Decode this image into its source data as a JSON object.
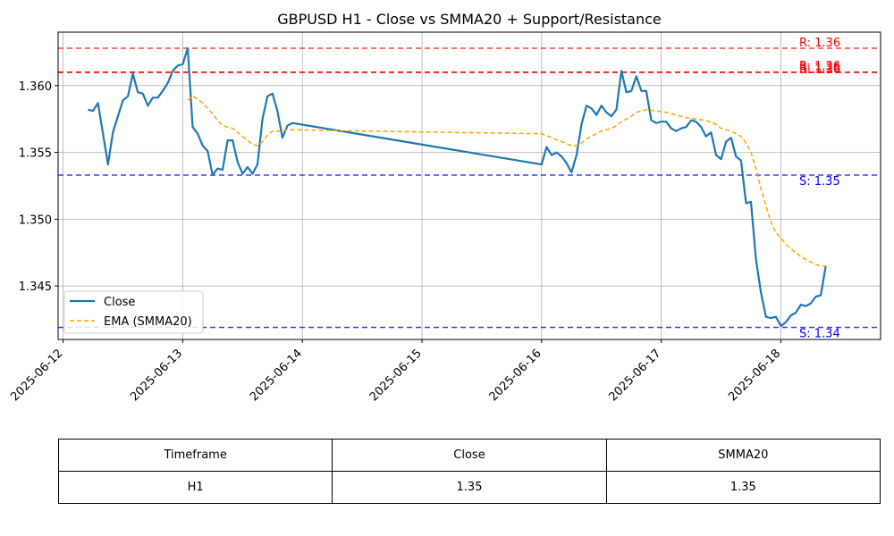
{
  "chart_data": {
    "type": "line",
    "title": "GBPUSD H1 - Close vs SMMA20 + Support/Resistance",
    "xlabel": "",
    "ylabel": "",
    "ylim": [
      1.341,
      1.364
    ],
    "xlim": [
      "2025-06-11T23:00",
      "2025-06-18T20:00"
    ],
    "xticks": [
      "2025-06-12",
      "2025-06-13",
      "2025-06-14",
      "2025-06-15",
      "2025-06-16",
      "2025-06-17",
      "2025-06-18"
    ],
    "yticks": [
      "1.345",
      "1.350",
      "1.355",
      "1.360"
    ],
    "grid": true,
    "legend_placement": "lower-left",
    "series": [
      {
        "name": "Close",
        "color": "#1f77b4",
        "style": "solid",
        "points": [
          [
            "2025-06-12T05:00",
            1.3582
          ],
          [
            "2025-06-12T06:00",
            1.3581
          ],
          [
            "2025-06-12T07:00",
            1.3587
          ],
          [
            "2025-06-12T08:00",
            1.3564
          ],
          [
            "2025-06-12T09:00",
            1.3541
          ],
          [
            "2025-06-12T10:00",
            1.3565
          ],
          [
            "2025-06-12T11:00",
            1.3577
          ],
          [
            "2025-06-12T12:00",
            1.3589
          ],
          [
            "2025-06-12T13:00",
            1.3592
          ],
          [
            "2025-06-12T14:00",
            1.3609
          ],
          [
            "2025-06-12T15:00",
            1.3595
          ],
          [
            "2025-06-12T16:00",
            1.3594
          ],
          [
            "2025-06-12T17:00",
            1.3585
          ],
          [
            "2025-06-12T18:00",
            1.3591
          ],
          [
            "2025-06-12T19:00",
            1.3591
          ],
          [
            "2025-06-12T20:00",
            1.3596
          ],
          [
            "2025-06-12T21:00",
            1.3602
          ],
          [
            "2025-06-12T22:00",
            1.3611
          ],
          [
            "2025-06-12T23:00",
            1.3615
          ],
          [
            "2025-06-13T00:00",
            1.3616
          ],
          [
            "2025-06-13T01:00",
            1.3628
          ],
          [
            "2025-06-13T02:00",
            1.3569
          ],
          [
            "2025-06-13T03:00",
            1.3564
          ],
          [
            "2025-06-13T04:00",
            1.3555
          ],
          [
            "2025-06-13T05:00",
            1.3551
          ],
          [
            "2025-06-13T06:00",
            1.3533
          ],
          [
            "2025-06-13T07:00",
            1.3538
          ],
          [
            "2025-06-13T08:00",
            1.3537
          ],
          [
            "2025-06-13T09:00",
            1.3559
          ],
          [
            "2025-06-13T10:00",
            1.3559
          ],
          [
            "2025-06-13T11:00",
            1.3543
          ],
          [
            "2025-06-13T12:00",
            1.3534
          ],
          [
            "2025-06-13T13:00",
            1.3539
          ],
          [
            "2025-06-13T14:00",
            1.3534
          ],
          [
            "2025-06-13T15:00",
            1.3541
          ],
          [
            "2025-06-13T16:00",
            1.3575
          ],
          [
            "2025-06-13T17:00",
            1.3592
          ],
          [
            "2025-06-13T18:00",
            1.3594
          ],
          [
            "2025-06-13T19:00",
            1.3581
          ],
          [
            "2025-06-13T20:00",
            1.3561
          ],
          [
            "2025-06-13T21:00",
            1.357
          ],
          [
            "2025-06-13T22:00",
            1.3572
          ],
          [
            "2025-06-16T00:00",
            1.3541
          ],
          [
            "2025-06-16T01:00",
            1.3554
          ],
          [
            "2025-06-16T02:00",
            1.3548
          ],
          [
            "2025-06-16T03:00",
            1.355
          ],
          [
            "2025-06-16T04:00",
            1.3547
          ],
          [
            "2025-06-16T05:00",
            1.3542
          ],
          [
            "2025-06-16T06:00",
            1.3535
          ],
          [
            "2025-06-16T07:00",
            1.3548
          ],
          [
            "2025-06-16T08:00",
            1.3571
          ],
          [
            "2025-06-16T09:00",
            1.3585
          ],
          [
            "2025-06-16T10:00",
            1.3583
          ],
          [
            "2025-06-16T11:00",
            1.3578
          ],
          [
            "2025-06-16T12:00",
            1.3585
          ],
          [
            "2025-06-16T13:00",
            1.358
          ],
          [
            "2025-06-16T14:00",
            1.3577
          ],
          [
            "2025-06-16T15:00",
            1.3582
          ],
          [
            "2025-06-16T16:00",
            1.3611
          ],
          [
            "2025-06-16T17:00",
            1.3595
          ],
          [
            "2025-06-16T18:00",
            1.3596
          ],
          [
            "2025-06-16T19:00",
            1.3607
          ],
          [
            "2025-06-16T20:00",
            1.3596
          ],
          [
            "2025-06-16T21:00",
            1.3596
          ],
          [
            "2025-06-16T22:00",
            1.3574
          ],
          [
            "2025-06-16T23:00",
            1.3572
          ],
          [
            "2025-06-17T00:00",
            1.3573
          ],
          [
            "2025-06-17T01:00",
            1.3573
          ],
          [
            "2025-06-17T02:00",
            1.3568
          ],
          [
            "2025-06-17T03:00",
            1.3566
          ],
          [
            "2025-06-17T04:00",
            1.3568
          ],
          [
            "2025-06-17T05:00",
            1.3569
          ],
          [
            "2025-06-17T06:00",
            1.3574
          ],
          [
            "2025-06-17T07:00",
            1.3573
          ],
          [
            "2025-06-17T08:00",
            1.3569
          ],
          [
            "2025-06-17T09:00",
            1.3562
          ],
          [
            "2025-06-17T10:00",
            1.3565
          ],
          [
            "2025-06-17T11:00",
            1.3548
          ],
          [
            "2025-06-17T12:00",
            1.3545
          ],
          [
            "2025-06-17T13:00",
            1.3558
          ],
          [
            "2025-06-17T14:00",
            1.3561
          ],
          [
            "2025-06-17T15:00",
            1.3547
          ],
          [
            "2025-06-17T16:00",
            1.3544
          ],
          [
            "2025-06-17T17:00",
            1.3512
          ],
          [
            "2025-06-17T18:00",
            1.3513
          ],
          [
            "2025-06-17T19:00",
            1.347
          ],
          [
            "2025-06-17T20:00",
            1.3445
          ],
          [
            "2025-06-17T21:00",
            1.3427
          ],
          [
            "2025-06-17T22:00",
            1.3426
          ],
          [
            "2025-06-17T23:00",
            1.3427
          ],
          [
            "2025-06-18T00:00",
            1.342
          ],
          [
            "2025-06-18T01:00",
            1.3423
          ],
          [
            "2025-06-18T02:00",
            1.3428
          ],
          [
            "2025-06-18T03:00",
            1.343
          ],
          [
            "2025-06-18T04:00",
            1.3436
          ],
          [
            "2025-06-18T05:00",
            1.3435
          ],
          [
            "2025-06-18T06:00",
            1.3437
          ],
          [
            "2025-06-18T07:00",
            1.3442
          ],
          [
            "2025-06-18T08:00",
            1.3443
          ],
          [
            "2025-06-18T09:00",
            1.3465
          ]
        ]
      },
      {
        "name": "EMA (SMMA20)",
        "color": "#ffa500",
        "style": "dashed",
        "points": [
          [
            "2025-06-13T01:00",
            1.3589
          ],
          [
            "2025-06-13T02:00",
            1.3592
          ],
          [
            "2025-06-13T03:00",
            1.359
          ],
          [
            "2025-06-13T04:00",
            1.3587
          ],
          [
            "2025-06-13T05:00",
            1.3583
          ],
          [
            "2025-06-13T06:00",
            1.3579
          ],
          [
            "2025-06-13T07:00",
            1.3574
          ],
          [
            "2025-06-13T08:00",
            1.357
          ],
          [
            "2025-06-13T09:00",
            1.3569
          ],
          [
            "2025-06-13T10:00",
            1.3568
          ],
          [
            "2025-06-13T11:00",
            1.3565
          ],
          [
            "2025-06-13T12:00",
            1.3562
          ],
          [
            "2025-06-13T13:00",
            1.3559
          ],
          [
            "2025-06-13T14:00",
            1.3556
          ],
          [
            "2025-06-13T15:00",
            1.3555
          ],
          [
            "2025-06-13T16:00",
            1.3558
          ],
          [
            "2025-06-13T17:00",
            1.3563
          ],
          [
            "2025-06-13T18:00",
            1.3566
          ],
          [
            "2025-06-13T19:00",
            1.3566
          ],
          [
            "2025-06-13T20:00",
            1.3566
          ],
          [
            "2025-06-13T21:00",
            1.3567
          ],
          [
            "2025-06-13T22:00",
            1.3567
          ],
          [
            "2025-06-14T12:00",
            1.3566
          ],
          [
            "2025-06-16T00:00",
            1.3564
          ],
          [
            "2025-06-16T02:00",
            1.3561
          ],
          [
            "2025-06-16T04:00",
            1.3558
          ],
          [
            "2025-06-16T06:00",
            1.3555
          ],
          [
            "2025-06-16T07:00",
            1.3555
          ],
          [
            "2025-06-16T08:00",
            1.3557
          ],
          [
            "2025-06-16T09:00",
            1.356
          ],
          [
            "2025-06-16T10:00",
            1.3562
          ],
          [
            "2025-06-16T11:00",
            1.3564
          ],
          [
            "2025-06-16T12:00",
            1.3566
          ],
          [
            "2025-06-16T14:00",
            1.3568
          ],
          [
            "2025-06-16T15:00",
            1.357
          ],
          [
            "2025-06-16T16:00",
            1.3573
          ],
          [
            "2025-06-16T17:00",
            1.3575
          ],
          [
            "2025-06-16T18:00",
            1.3577
          ],
          [
            "2025-06-16T19:00",
            1.358
          ],
          [
            "2025-06-16T21:00",
            1.3582
          ],
          [
            "2025-06-16T23:00",
            1.3581
          ],
          [
            "2025-06-17T01:00",
            1.358
          ],
          [
            "2025-06-17T03:00",
            1.3578
          ],
          [
            "2025-06-17T05:00",
            1.3576
          ],
          [
            "2025-06-17T07:00",
            1.3575
          ],
          [
            "2025-06-17T09:00",
            1.3574
          ],
          [
            "2025-06-17T11:00",
            1.3571
          ],
          [
            "2025-06-17T12:00",
            1.3568
          ],
          [
            "2025-06-17T14:00",
            1.3566
          ],
          [
            "2025-06-17T15:00",
            1.3564
          ],
          [
            "2025-06-17T16:00",
            1.3562
          ],
          [
            "2025-06-17T17:00",
            1.3557
          ],
          [
            "2025-06-17T18:00",
            1.355
          ],
          [
            "2025-06-17T19:00",
            1.3538
          ],
          [
            "2025-06-17T20:00",
            1.3523
          ],
          [
            "2025-06-17T21:00",
            1.351
          ],
          [
            "2025-06-17T22:00",
            1.3498
          ],
          [
            "2025-06-17T23:00",
            1.349
          ],
          [
            "2025-06-18T00:00",
            1.3486
          ],
          [
            "2025-06-18T01:00",
            1.3481
          ],
          [
            "2025-06-18T02:00",
            1.3478
          ],
          [
            "2025-06-18T03:00",
            1.3475
          ],
          [
            "2025-06-18T04:00",
            1.3472
          ],
          [
            "2025-06-18T05:00",
            1.347
          ],
          [
            "2025-06-18T06:00",
            1.3468
          ],
          [
            "2025-06-18T07:00",
            1.3466
          ],
          [
            "2025-06-18T08:00",
            1.3465
          ],
          [
            "2025-06-18T09:00",
            1.3465
          ]
        ]
      }
    ],
    "levels": [
      {
        "kind": "resistance",
        "label": "R: 1.36",
        "value": 1.3628,
        "color": "#ff0000",
        "label_slot": "top"
      },
      {
        "kind": "resistance",
        "label": "R: 1.36",
        "value": 1.361,
        "color": "#ff0000",
        "label_slot": "mid-a"
      },
      {
        "kind": "resistance",
        "label": "R: 1.36",
        "value": 1.361,
        "color": "#ff0000",
        "label_slot": "mid-b"
      },
      {
        "kind": "resistance",
        "label": "R: 1.36",
        "value": 1.361,
        "color": "#ff0000",
        "label_slot": "mid-c"
      },
      {
        "kind": "support",
        "label": "S: 1.35",
        "value": 1.3533,
        "color": "#0000ff",
        "label_slot": "below"
      },
      {
        "kind": "support",
        "label": "S: 1.34",
        "value": 1.3419,
        "color": "#0000ff",
        "label_slot": "below"
      }
    ]
  },
  "summary_table": {
    "headers": [
      "Timeframe",
      "Close",
      "SMMA20"
    ],
    "rows": [
      [
        "H1",
        "1.35",
        "1.35"
      ]
    ]
  }
}
